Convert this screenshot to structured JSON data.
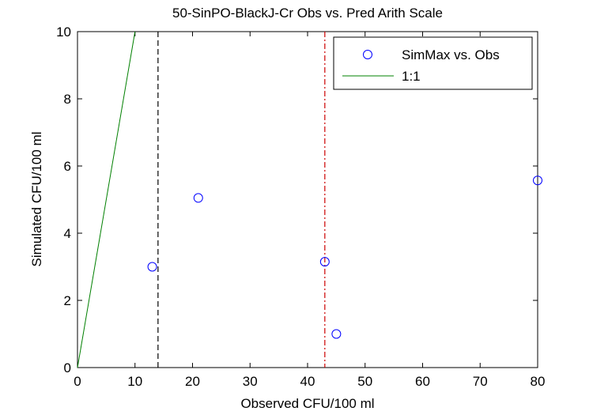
{
  "chart_data": {
    "type": "scatter",
    "title": "50-SinPO-BlackJ-Cr Obs vs. Pred Arith Scale",
    "xlabel": "Observed CFU/100 ml",
    "ylabel": "Simulated CFU/100 ml",
    "xlim": [
      0,
      80
    ],
    "ylim": [
      0,
      10
    ],
    "xticks": [
      0,
      10,
      20,
      30,
      40,
      50,
      60,
      70,
      80
    ],
    "yticks": [
      0,
      2,
      4,
      6,
      8,
      10
    ],
    "grid": false,
    "legend_position": "top-right",
    "series": [
      {
        "name": "SimMax vs. Obs",
        "kind": "scatter",
        "marker": "circle",
        "color": "#0000ff",
        "points": [
          {
            "x": 13,
            "y": 3.0
          },
          {
            "x": 21,
            "y": 5.05
          },
          {
            "x": 43,
            "y": 3.15
          },
          {
            "x": 45,
            "y": 1.0
          },
          {
            "x": 80,
            "y": 5.57
          }
        ]
      },
      {
        "name": "1:1",
        "kind": "line",
        "color": "#008000",
        "points": [
          {
            "x": 0,
            "y": 0
          },
          {
            "x": 10,
            "y": 10
          }
        ]
      }
    ],
    "reference_lines": [
      {
        "orientation": "vertical",
        "x": 14,
        "style": "dashed",
        "color": "#000000"
      },
      {
        "orientation": "vertical",
        "x": 43,
        "style": "dashdot",
        "color": "#cc0000"
      }
    ]
  }
}
